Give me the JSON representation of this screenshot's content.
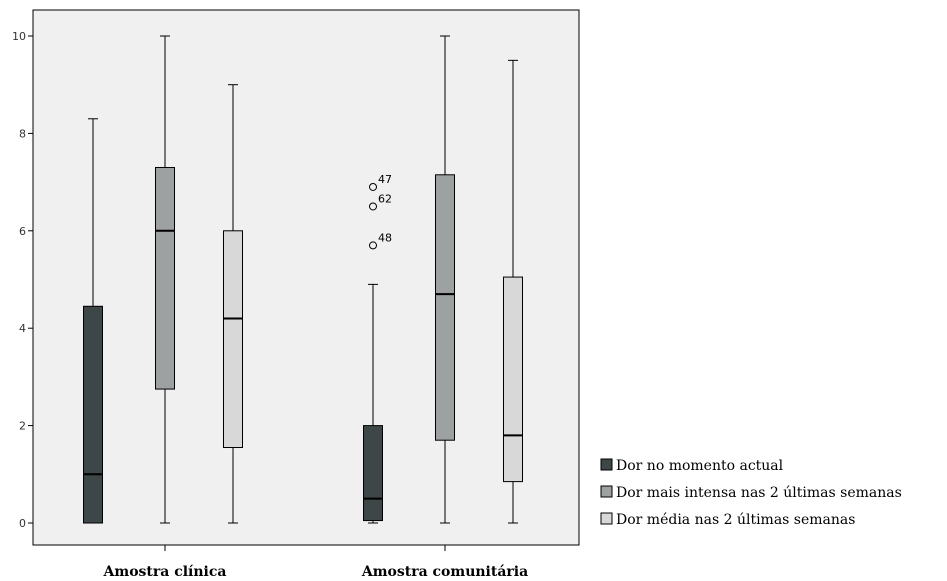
{
  "chart_data": {
    "type": "boxplot",
    "ylim": [
      -0.5,
      10.5
    ],
    "yticks": [
      0,
      2,
      4,
      6,
      8,
      10
    ],
    "categories": [
      "Amostra clínica",
      "Amostra comunitária"
    ],
    "series": [
      {
        "name": "Dor no momento actual",
        "color": "#3e4747",
        "boxes": [
          {
            "min": 0,
            "q1": 0,
            "median": 1.0,
            "q3": 4.45,
            "max": 8.3,
            "outliers": []
          },
          {
            "min": 0,
            "q1": 0.05,
            "median": 0.5,
            "q3": 2.0,
            "max": 4.9,
            "outliers": [
              {
                "value": 6.9,
                "label": "47"
              },
              {
                "value": 6.5,
                "label": "62"
              },
              {
                "value": 5.7,
                "label": "48"
              }
            ]
          }
        ]
      },
      {
        "name": "Dor mais intensa nas 2 últimas semanas",
        "color": "#9da1a2",
        "boxes": [
          {
            "min": 0,
            "q1": 2.75,
            "median": 6.0,
            "q3": 7.3,
            "max": 10.0,
            "outliers": []
          },
          {
            "min": 0,
            "q1": 1.7,
            "median": 4.7,
            "q3": 7.15,
            "max": 10.0,
            "outliers": []
          }
        ]
      },
      {
        "name": "Dor média nas 2 últimas semanas",
        "color": "#d8d8d8",
        "boxes": [
          {
            "min": 0,
            "q1": 1.55,
            "median": 4.2,
            "q3": 6.0,
            "max": 9.0,
            "outliers": []
          },
          {
            "min": 0,
            "q1": 0.85,
            "median": 1.8,
            "q3": 5.05,
            "max": 9.5,
            "outliers": []
          }
        ]
      }
    ],
    "grid": false,
    "legend_position": "right"
  }
}
